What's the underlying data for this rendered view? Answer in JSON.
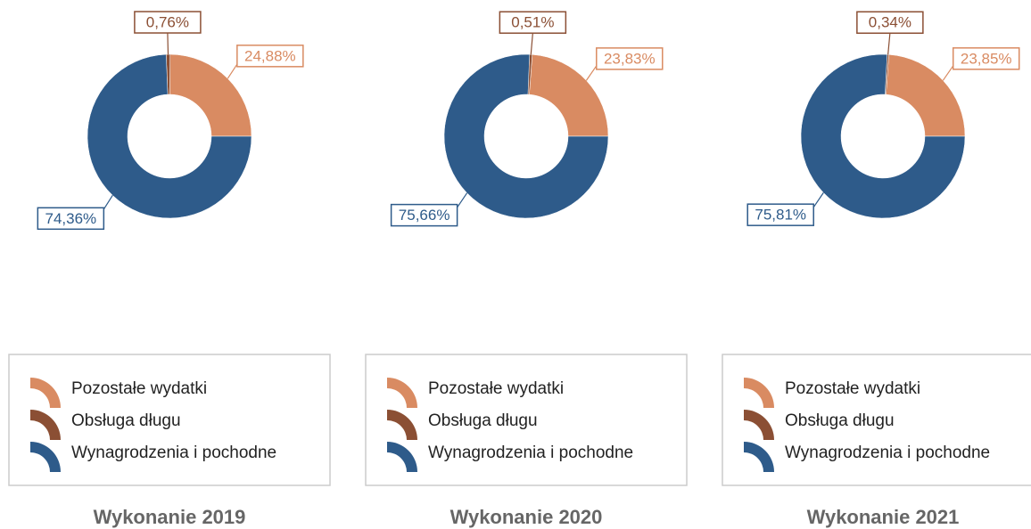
{
  "chart_data": [
    {
      "type": "donut",
      "title": "Wykonanie 2019",
      "categories": [
        "Pozostałe wydatki",
        "Obsługa długu",
        "Wynagrodzenia i pochodne"
      ],
      "values": [
        24.88,
        0.76,
        74.36
      ],
      "value_labels": [
        "24,88%",
        "0,76%",
        "74,36%"
      ],
      "colors": [
        "#d98b62",
        "#8b4f34",
        "#2e5b8a"
      ]
    },
    {
      "type": "donut",
      "title": "Wykonanie 2020",
      "categories": [
        "Pozostałe wydatki",
        "Obsługa długu",
        "Wynagrodzenia i pochodne"
      ],
      "values": [
        23.83,
        0.51,
        75.66
      ],
      "value_labels": [
        "23,83%",
        "0,51%",
        "75,66%"
      ],
      "colors": [
        "#d98b62",
        "#8b4f34",
        "#2e5b8a"
      ]
    },
    {
      "type": "donut",
      "title": "Wykonanie 2021",
      "categories": [
        "Pozostałe wydatki",
        "Obsługa długu",
        "Wynagrodzenia i pochodne"
      ],
      "values": [
        23.85,
        0.34,
        75.81
      ],
      "value_labels": [
        "23,85%",
        "0,34%",
        "75,81%"
      ],
      "colors": [
        "#d98b62",
        "#8b4f34",
        "#2e5b8a"
      ]
    }
  ]
}
